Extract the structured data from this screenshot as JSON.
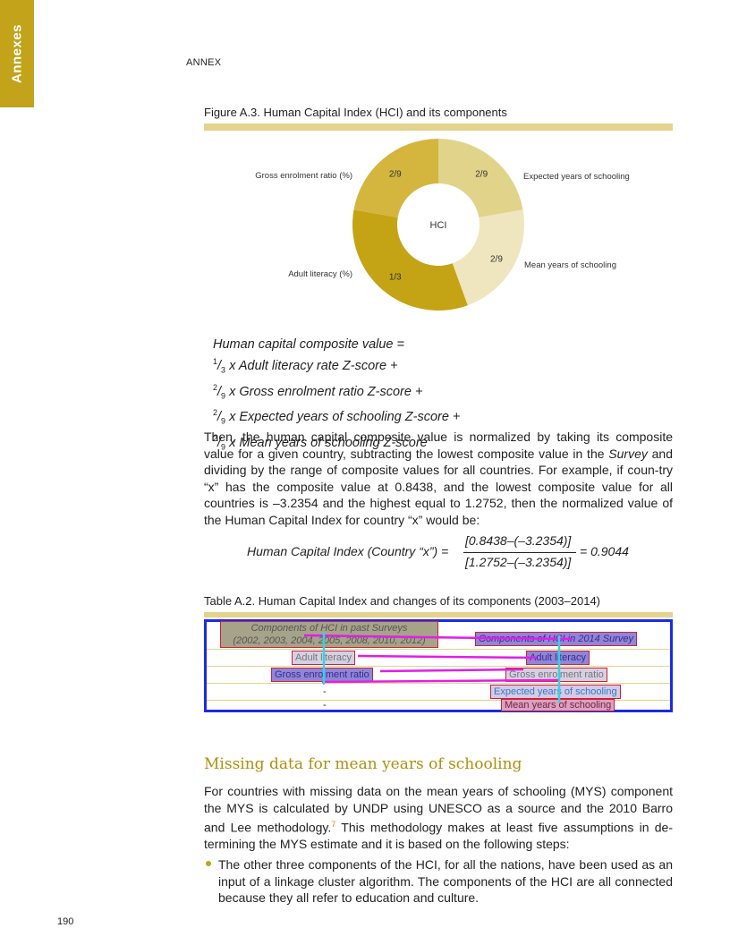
{
  "side_tab": {
    "label": "Annexes"
  },
  "header": {
    "annex": "ANNEX"
  },
  "figure": {
    "title": "Figure A.3.    Human Capital Index (HCI) and its components",
    "center_label": "HCI",
    "segments": [
      {
        "name": "Expected years of schooling",
        "fraction_label": "2/9",
        "value": 0.2222,
        "color": "#e2d38b"
      },
      {
        "name": "Mean years of schooling",
        "fraction_label": "2/9",
        "value": 0.2222,
        "color": "#efe6bf"
      },
      {
        "name": "Adult literacy (%)",
        "fraction_label": "1/3",
        "value": 0.3333,
        "color": "#c4a414"
      },
      {
        "name": "Gross enrolment ratio (%)",
        "fraction_label": "2/9",
        "value": 0.2222,
        "color": "#d4b63e"
      }
    ]
  },
  "formula": {
    "line1": "Human capital composite value =",
    "frac_1_3_num": "1",
    "frac_1_3_den": "3",
    "frac_2_9_num": "2",
    "frac_2_9_den": "9",
    "term1": " x Adult literacy rate Z-score +",
    "term2": " x Gross enrolment ratio Z-score +",
    "term3": " x Expected years of schooling Z-score +",
    "term4": " x Mean years of schooling Z-score"
  },
  "paragraph1": {
    "part1": "Then, the human capital composite value is normalized by taking its composite value for a given country, subtracting the lowest composite value in the ",
    "survey_word": "Survey",
    "part2": " and dividing by the range of composite values for all countries. For example, if coun-try “x” has the composite value at 0.8438, and the lowest composite value for all countries is –3.2354 and the highest equal to 1.2752, then the normalized value of the Human Capital Index for country “x” would be:"
  },
  "equation": {
    "lhs": "Human Capital Index (Country “x”) =",
    "numerator": "[0.8438–(–3.2354)]",
    "denominator": "[1.2752–(–3.2354)]",
    "rhs": "= 0.9044"
  },
  "table": {
    "title": "Table A.2.    Human Capital Index and changes of its components (2003–2014)",
    "header_left_line1": "Components of HCI in past Surveys",
    "header_left_line2": "(2002, 2003, 2004, 2005, 2008, 2010, 2012)",
    "header_right": "Components of HCI in 2014 Survey",
    "rows": [
      {
        "left": "Adult literacy",
        "right": "Adult literacy"
      },
      {
        "left": "Gross enrolment ratio",
        "right": "Gross enrolment ratio"
      },
      {
        "left": "-",
        "right": "Expected years of schooling"
      },
      {
        "left": "-",
        "right": "Mean years of schooling"
      }
    ]
  },
  "section": {
    "heading": "Missing data for mean years of schooling",
    "para_part1": "For countries with missing data on the mean years of schooling (MYS) component the MYS is calculated by UNDP using UNESCO as a source and the 2010 Barro and Lee methodology.",
    "footnote_ref": "7",
    "para_part2": " This methodology makes at least five assumptions in de-termining the MYS estimate and it is based on the following steps:",
    "bullet1": "The other three components of the HCI, for all the nations, have been used as an input of a linkage cluster algorithm. The components of the HCI are all connected because they all refer to education and culture."
  },
  "footer": {
    "page_number": "190"
  }
}
